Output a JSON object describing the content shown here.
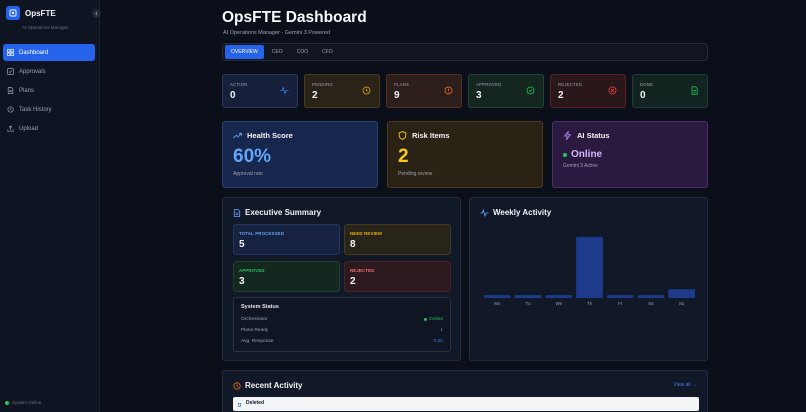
{
  "app": {
    "name": "OpsFTE",
    "subtitle": "AI Operations Manager",
    "system_status": "System Online"
  },
  "sidebar": {
    "items": [
      {
        "label": "Dashboard",
        "icon": "grid-icon",
        "active": true
      },
      {
        "label": "Approvals",
        "icon": "check-square-icon",
        "active": false
      },
      {
        "label": "Plans",
        "icon": "document-icon",
        "active": false
      },
      {
        "label": "Task History",
        "icon": "history-icon",
        "active": false
      },
      {
        "label": "Upload",
        "icon": "upload-icon",
        "active": false
      }
    ]
  },
  "header": {
    "title": "OpsFTE Dashboard",
    "subtitle": "AI Operations Manager - Gemini 3 Powered"
  },
  "tabs": [
    {
      "label": "OVERVIEW",
      "active": true
    },
    {
      "label": "CEO",
      "active": false
    },
    {
      "label": "COO",
      "active": false
    },
    {
      "label": "CFO",
      "active": false
    }
  ],
  "stats": [
    {
      "label": "ACTION",
      "value": "0",
      "icon": "activity-icon",
      "color": "#3b82f6"
    },
    {
      "label": "PENDING",
      "value": "2",
      "icon": "clock-icon",
      "color": "#eab308"
    },
    {
      "label": "PLANS",
      "value": "9",
      "icon": "alert-circle-icon",
      "color": "#f97316"
    },
    {
      "label": "APPROVED",
      "value": "3",
      "icon": "check-circle-icon",
      "color": "#22c55e"
    },
    {
      "label": "REJECTED",
      "value": "2",
      "icon": "x-circle-icon",
      "color": "#ef4444"
    },
    {
      "label": "DONE",
      "value": "0",
      "icon": "file-icon",
      "color": "#22c55e"
    }
  ],
  "health": {
    "title": "Health Score",
    "value": "60%",
    "caption": "Approval rate"
  },
  "risk": {
    "title": "Risk Items",
    "value": "2",
    "caption": "Pending review"
  },
  "ai": {
    "title": "AI Status",
    "status": "Online",
    "caption": "Gemini 3 Active"
  },
  "summary": {
    "title": "Executive Summary",
    "cards": [
      {
        "label": "TOTAL PROCESSED",
        "value": "5"
      },
      {
        "label": "NEED REVIEW",
        "value": "8"
      },
      {
        "label": "APPROVED",
        "value": "3"
      },
      {
        "label": "REJECTED",
        "value": "2"
      }
    ],
    "system_status": {
      "title": "System Status",
      "rows": [
        {
          "label": "Orchestrator",
          "value": "Online"
        },
        {
          "label": "Plans Ready",
          "value": "1"
        },
        {
          "label": "Avg. Response",
          "value": "0.2h"
        }
      ]
    }
  },
  "weekly": {
    "title": "Weekly Activity"
  },
  "chart_data": {
    "type": "bar",
    "title": "Weekly Activity",
    "categories": [
      "Mo",
      "Tu",
      "We",
      "Th",
      "Fr",
      "Sa",
      "Su"
    ],
    "values": [
      1,
      1,
      1,
      21,
      1,
      1,
      3
    ],
    "ylim": [
      0,
      22
    ],
    "grid": false,
    "color": "#1e3a8a"
  },
  "recent": {
    "title": "Recent Activity",
    "view_all": "View all →",
    "items": [
      {
        "label": "Deleted"
      }
    ]
  }
}
